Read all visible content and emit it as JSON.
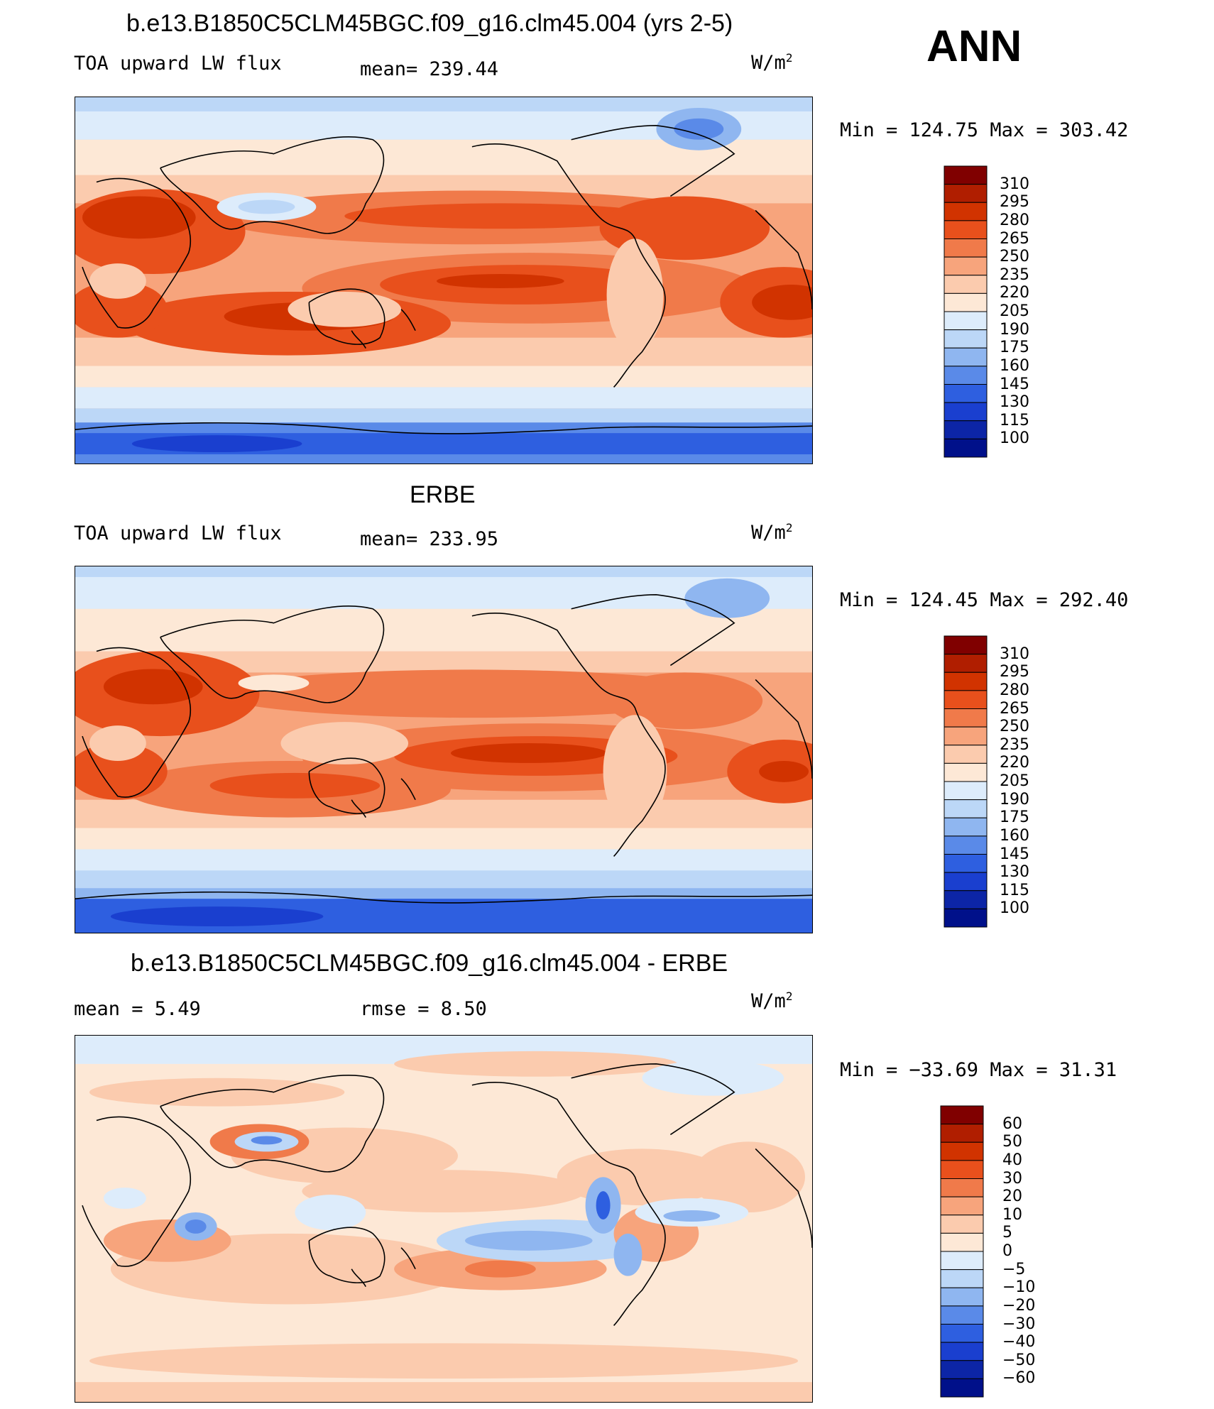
{
  "season": "ANN",
  "units_base": "W/m",
  "units_exp": "2",
  "colors": {
    "flux": [
      "#800000",
      "#b01e00",
      "#d13300",
      "#e8501c",
      "#f07a4a",
      "#f7a47c",
      "#fbcbae",
      "#fde8d6",
      "#ddecfb",
      "#bcd7f7",
      "#8fb6f0",
      "#5a8ae8",
      "#2e5fe0",
      "#1a3fcf",
      "#0c25a6",
      "#00108a"
    ],
    "diff": [
      "#800000",
      "#b01e00",
      "#d13300",
      "#e8501c",
      "#f07a4a",
      "#f7a47c",
      "#fbcbae",
      "#fde8d6",
      "#ddecfb",
      "#bcd7f7",
      "#8fb6f0",
      "#5a8ae8",
      "#2e5fe0",
      "#1a3fcf",
      "#0c25a6",
      "#00108a"
    ]
  },
  "panels": [
    {
      "id": "model",
      "title": "b.e13.B1850C5CLM45BGC.f09_g16.clm45.004 (yrs 2-5)",
      "left_label": "TOA upward LW flux",
      "mean_label": "mean= 239.44",
      "minmax": "Min = 124.75 Max = 303.42",
      "colorbar_levels": [
        "310",
        "295",
        "280",
        "265",
        "250",
        "235",
        "220",
        "205",
        "190",
        "175",
        "160",
        "145",
        "130",
        "115",
        "100"
      ]
    },
    {
      "id": "obs",
      "title": "ERBE",
      "left_label": "TOA upward LW flux",
      "mean_label": "mean= 233.95",
      "minmax": "Min = 124.45 Max = 292.40",
      "colorbar_levels": [
        "310",
        "295",
        "280",
        "265",
        "250",
        "235",
        "220",
        "205",
        "190",
        "175",
        "160",
        "145",
        "130",
        "115",
        "100"
      ]
    },
    {
      "id": "diff",
      "title": "b.e13.B1850C5CLM45BGC.f09_g16.clm45.004 - ERBE",
      "left_label": "mean =    5.49",
      "mean_label": "rmse =    8.50",
      "minmax": "Min = −33.69 Max =  31.31",
      "colorbar_levels": [
        "60",
        "50",
        "40",
        "30",
        "20",
        "10",
        "5",
        "0",
        "−5",
        "−10",
        "−20",
        "−30",
        "−40",
        "−50",
        "−60"
      ]
    }
  ],
  "chart_data": [
    {
      "type": "heatmap",
      "title": "b.e13.B1850C5CLM45BGC.f09_g16.clm45.004 (yrs 2-5)",
      "subtitle": "TOA upward LW flux",
      "units": "W/m2",
      "mean": 239.44,
      "min": 124.75,
      "max": 303.42,
      "levels": [
        100,
        115,
        130,
        145,
        160,
        175,
        190,
        205,
        220,
        235,
        250,
        265,
        280,
        295,
        310
      ],
      "projection": "cylindrical equidistant, centered on Pacific"
    },
    {
      "type": "heatmap",
      "title": "ERBE",
      "subtitle": "TOA upward LW flux",
      "units": "W/m2",
      "mean": 233.95,
      "min": 124.45,
      "max": 292.4,
      "levels": [
        100,
        115,
        130,
        145,
        160,
        175,
        190,
        205,
        220,
        235,
        250,
        265,
        280,
        295,
        310
      ],
      "projection": "cylindrical equidistant, centered on Pacific"
    },
    {
      "type": "heatmap",
      "title": "b.e13.B1850C5CLM45BGC.f09_g16.clm45.004 - ERBE",
      "units": "W/m2",
      "mean": 5.49,
      "rmse": 8.5,
      "min": -33.69,
      "max": 31.31,
      "levels": [
        -60,
        -50,
        -40,
        -30,
        -20,
        -10,
        -5,
        0,
        5,
        10,
        20,
        30,
        40,
        50,
        60
      ],
      "projection": "cylindrical equidistant, centered on Pacific"
    }
  ]
}
